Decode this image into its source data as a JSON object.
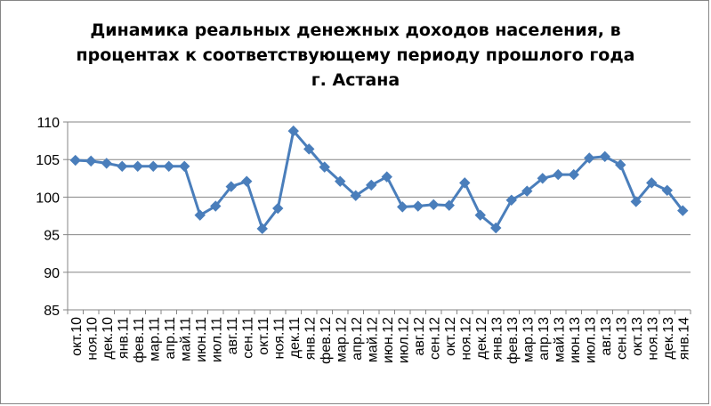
{
  "chart_data": {
    "type": "line",
    "title_lines": [
      "Динамика реальных денежных доходов населения, в",
      "процентах к соответствующему периоду прошлого года",
      "г. Астана"
    ],
    "categories": [
      "окт.10",
      "ноя.10",
      "дек.10",
      "янв.11",
      "фев.11",
      "мар.11",
      "апр.11",
      "май.11",
      "июн.11",
      "июл.11",
      "авг.11",
      "сен.11",
      "окт.11",
      "ноя.11",
      "дек.11",
      "янв.12",
      "фев.12",
      "мар.12",
      "апр.12",
      "май.12",
      "июн.12",
      "июл.12",
      "авг.12",
      "сен.12",
      "окт.12",
      "ноя.12",
      "дек.12",
      "янв.13",
      "фев.13",
      "мар.13",
      "апр.13",
      "май.13",
      "июн.13",
      "июл.13",
      "авг.13",
      "сен.13",
      "окт.13",
      "ноя.13",
      "дек.13",
      "янв.14"
    ],
    "series": [
      {
        "values": [
          104.9,
          104.8,
          104.5,
          104.1,
          104.1,
          104.1,
          104.1,
          104.1,
          97.6,
          98.8,
          101.4,
          102.1,
          95.8,
          98.5,
          108.8,
          106.4,
          104.0,
          102.1,
          100.2,
          101.6,
          102.7,
          98.7,
          98.8,
          99.0,
          98.9,
          101.9,
          97.6,
          95.9,
          99.6,
          100.8,
          102.5,
          103.0,
          103.0,
          105.2,
          105.4,
          104.3,
          99.4,
          101.9,
          100.9,
          98.2
        ]
      }
    ],
    "ylim": [
      85,
      110
    ],
    "yticks": [
      85,
      90,
      95,
      100,
      105,
      110
    ],
    "grid": true,
    "legend": "none",
    "line_color": "#4a7ebb"
  }
}
